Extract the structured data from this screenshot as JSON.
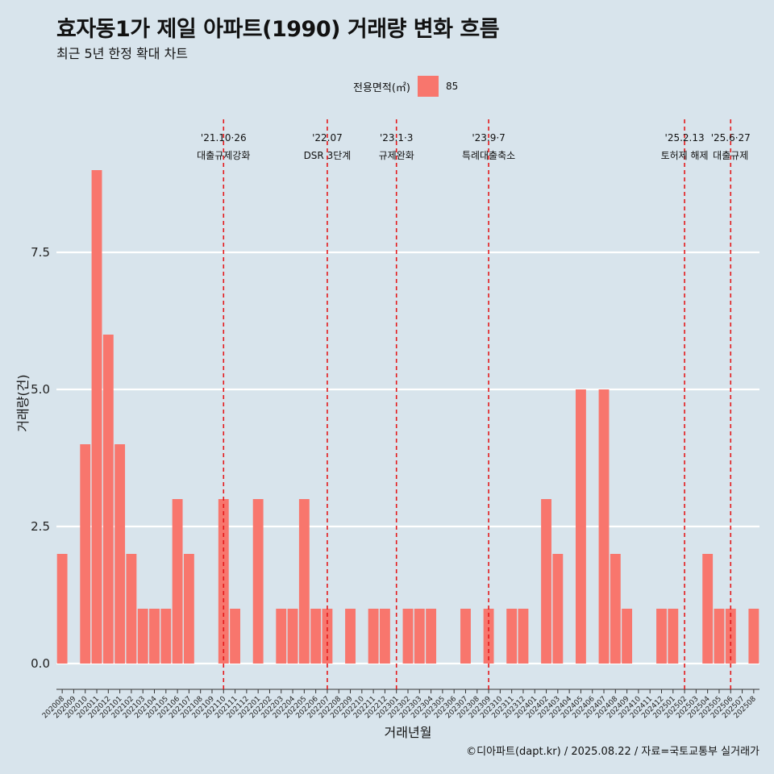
{
  "title": "효자동1가 제일 아파트(1990) 거래량 변화 흐름",
  "subtitle": "최근 5년 한정 확대 차트",
  "caption": "©디아파트(dapt.kr) / 2025.08.22 / 자료=국토교통부 실거래가",
  "colors": {
    "background": "#d8e4ec",
    "bar": "#f8766d",
    "grid": "#ffffff",
    "event_line": "#e41a1c"
  },
  "chart_data": {
    "type": "bar",
    "title": "효자동1가 제일 아파트(1990) 거래량 변화 흐름",
    "subtitle": "최근 5년 한정 확대 차트",
    "xlabel": "거래년월",
    "ylabel": "거래량(건)",
    "ylim": [
      0,
      9
    ],
    "yticks": [
      0,
      2.5,
      5,
      7.5
    ],
    "ytick_labels": [
      "0.0",
      "2.5",
      "5.0",
      "7.5"
    ],
    "grid": true,
    "legend": {
      "title": "전용면적(㎡)",
      "placement": "top",
      "entries": [
        "85"
      ]
    },
    "categories": [
      "202008",
      "202009",
      "202010",
      "202011",
      "202012",
      "202101",
      "202102",
      "202103",
      "202104",
      "202105",
      "202106",
      "202107",
      "202108",
      "202109",
      "202110",
      "202111",
      "202112",
      "202201",
      "202202",
      "202203",
      "202204",
      "202205",
      "202206",
      "202207",
      "202208",
      "202209",
      "202210",
      "202211",
      "202212",
      "202301",
      "202302",
      "202303",
      "202304",
      "202305",
      "202306",
      "202307",
      "202308",
      "202309",
      "202310",
      "202311",
      "202312",
      "202401",
      "202402",
      "202403",
      "202404",
      "202405",
      "202406",
      "202407",
      "202408",
      "202409",
      "202410",
      "202411",
      "202412",
      "202501",
      "202502",
      "202503",
      "202504",
      "202505",
      "202506",
      "202507",
      "202508"
    ],
    "series": [
      {
        "name": "85",
        "values": [
          2,
          0,
          4,
          9,
          6,
          4,
          2,
          1,
          1,
          1,
          3,
          2,
          0,
          0,
          3,
          1,
          0,
          3,
          0,
          1,
          1,
          3,
          1,
          1,
          0,
          1,
          0,
          1,
          1,
          0,
          1,
          1,
          1,
          0,
          0,
          1,
          0,
          1,
          0,
          1,
          1,
          0,
          3,
          2,
          0,
          5,
          0,
          5,
          2,
          1,
          0,
          0,
          1,
          1,
          0,
          0,
          2,
          1,
          1,
          0,
          1
        ]
      }
    ],
    "events": [
      {
        "at": "202110",
        "date": "'21.10·26",
        "label": "대출규제강화"
      },
      {
        "at": "202207",
        "date": "'22.07",
        "label": "DSR 3단계"
      },
      {
        "at": "202301",
        "date": "'23.1·3",
        "label": "규제완화"
      },
      {
        "at": "202309",
        "date": "'23.9·7",
        "label": "특례대출축소"
      },
      {
        "at": "202502",
        "date": "'25.2.13",
        "label": "토허제 해제"
      },
      {
        "at": "202506",
        "date": "'25.6·27",
        "label": "대출규제"
      }
    ]
  }
}
